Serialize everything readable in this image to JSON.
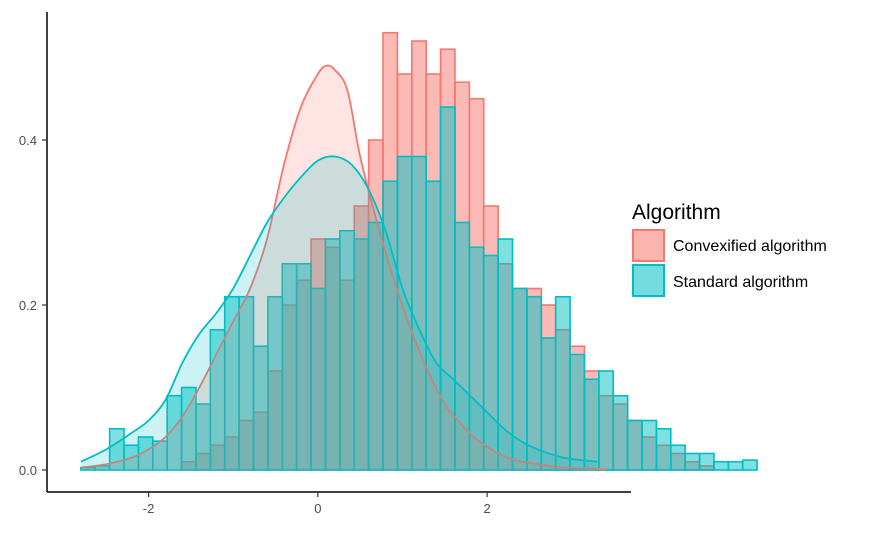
{
  "chart_data": {
    "type": "histogram",
    "xlim": [
      -3.2,
      3.7
    ],
    "ylim": [
      0,
      0.56
    ],
    "x_ticks": [
      {
        "value": -2,
        "label": "-2"
      },
      {
        "value": 0,
        "label": "0"
      },
      {
        "value": 2,
        "label": "2"
      }
    ],
    "y_ticks": [
      {
        "value": 0.0,
        "label": "0.0"
      },
      {
        "value": 0.2,
        "label": "0.2"
      },
      {
        "value": 0.4,
        "label": "0.4"
      }
    ],
    "grid": false,
    "legend": {
      "title": "Algorithm",
      "position": "right"
    },
    "bins": {
      "start": -2.8,
      "width": 0.17
    },
    "series": [
      {
        "name": "Convexified algorithm",
        "fill": "#F8766D",
        "fill_opacity": 0.5,
        "stroke": "#F8766D",
        "values": [
          0,
          0,
          0,
          0,
          0,
          0,
          0,
          0.01,
          0.02,
          0.03,
          0.04,
          0.06,
          0.07,
          0.12,
          0.2,
          0.23,
          0.28,
          0.27,
          0.23,
          0.32,
          0.4,
          0.53,
          0.48,
          0.52,
          0.48,
          0.51,
          0.47,
          0.45,
          0.32,
          0.25,
          0.22,
          0.22,
          0.2,
          0.17,
          0.15,
          0.12,
          0.09,
          0.08,
          0.06,
          0.04,
          0.03,
          0.02,
          0.01,
          0.005,
          0,
          0,
          0
        ],
        "density": [
          [
            -2.8,
            0.003
          ],
          [
            -2.5,
            0.007
          ],
          [
            -2.2,
            0.015
          ],
          [
            -2.0,
            0.025
          ],
          [
            -1.8,
            0.04
          ],
          [
            -1.6,
            0.065
          ],
          [
            -1.4,
            0.1
          ],
          [
            -1.2,
            0.14
          ],
          [
            -1.0,
            0.18
          ],
          [
            -0.8,
            0.22
          ],
          [
            -0.6,
            0.28
          ],
          [
            -0.4,
            0.37
          ],
          [
            -0.2,
            0.44
          ],
          [
            0.0,
            0.48
          ],
          [
            0.1,
            0.49
          ],
          [
            0.2,
            0.485
          ],
          [
            0.35,
            0.46
          ],
          [
            0.5,
            0.38
          ],
          [
            0.7,
            0.3
          ],
          [
            0.9,
            0.23
          ],
          [
            1.1,
            0.17
          ],
          [
            1.3,
            0.12
          ],
          [
            1.5,
            0.08
          ],
          [
            1.7,
            0.055
          ],
          [
            1.9,
            0.035
          ],
          [
            2.1,
            0.022
          ],
          [
            2.3,
            0.013
          ],
          [
            2.6,
            0.007
          ],
          [
            2.9,
            0.003
          ],
          [
            3.4,
            0.001
          ]
        ]
      },
      {
        "name": "Standard algorithm",
        "fill": "#00BFC4",
        "fill_opacity": 0.5,
        "stroke": "#00BFC4",
        "values": [
          0.003,
          0.005,
          0.05,
          0.03,
          0.04,
          0.035,
          0.09,
          0.1,
          0.08,
          0.17,
          0.21,
          0.21,
          0.15,
          0.21,
          0.25,
          0.25,
          0.22,
          0.28,
          0.29,
          0.28,
          0.3,
          0.35,
          0.38,
          0.38,
          0.35,
          0.44,
          0.3,
          0.27,
          0.26,
          0.28,
          0.22,
          0.21,
          0.16,
          0.21,
          0.14,
          0.11,
          0.12,
          0.09,
          0.06,
          0.06,
          0.05,
          0.03,
          0.02,
          0.02,
          0.01,
          0.01,
          0.012
        ],
        "density": [
          [
            -2.8,
            0.01
          ],
          [
            -2.5,
            0.025
          ],
          [
            -2.2,
            0.045
          ],
          [
            -2.0,
            0.06
          ],
          [
            -1.8,
            0.085
          ],
          [
            -1.6,
            0.13
          ],
          [
            -1.4,
            0.165
          ],
          [
            -1.2,
            0.19
          ],
          [
            -1.0,
            0.22
          ],
          [
            -0.8,
            0.26
          ],
          [
            -0.6,
            0.3
          ],
          [
            -0.4,
            0.33
          ],
          [
            -0.2,
            0.355
          ],
          [
            0.0,
            0.375
          ],
          [
            0.2,
            0.38
          ],
          [
            0.4,
            0.37
          ],
          [
            0.6,
            0.34
          ],
          [
            0.8,
            0.29
          ],
          [
            1.0,
            0.22
          ],
          [
            1.2,
            0.17
          ],
          [
            1.4,
            0.13
          ],
          [
            1.6,
            0.11
          ],
          [
            1.8,
            0.09
          ],
          [
            2.0,
            0.07
          ],
          [
            2.2,
            0.05
          ],
          [
            2.4,
            0.035
          ],
          [
            2.6,
            0.025
          ],
          [
            2.9,
            0.015
          ],
          [
            3.3,
            0.01
          ]
        ]
      }
    ]
  }
}
